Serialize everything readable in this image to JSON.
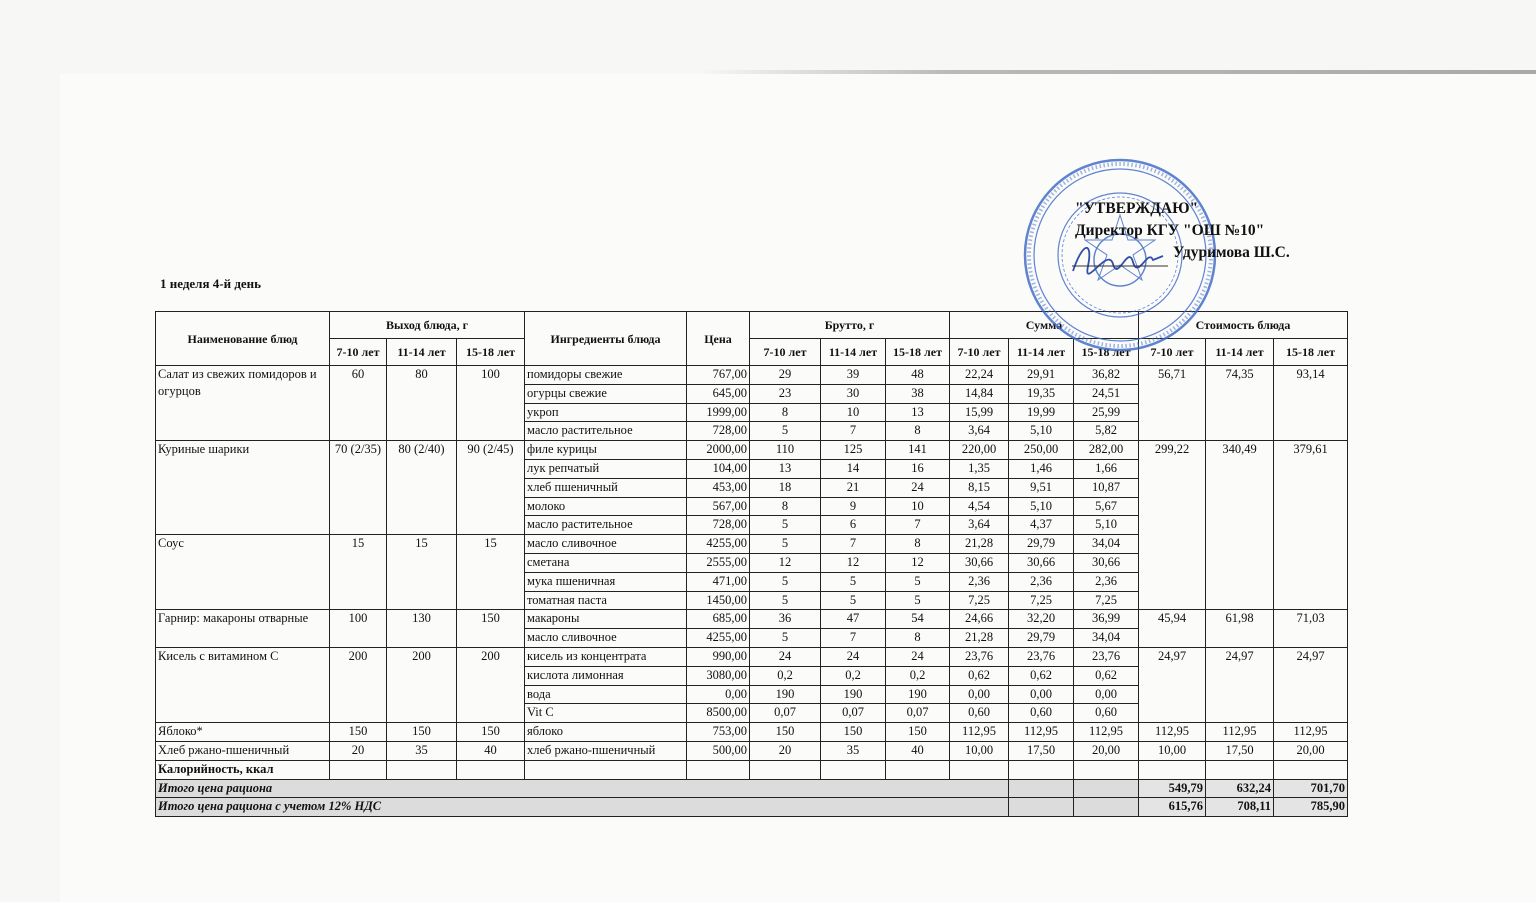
{
  "approval": {
    "line1": "\"УТВЕРЖДАЮ\"",
    "line2": "Директор КГУ \"ОШ №10\"",
    "line3": "Удуримова Ш.С.",
    "stamp_text": "ОШ №10 990440003"
  },
  "day_label": "1 неделя 4-й день",
  "colors": {
    "stamp": "#3a66c4",
    "total_fill": "#dcdcdc"
  },
  "headers": {
    "dish": "Наименование блюд",
    "yield": "Выход блюда, г",
    "ingredients": "Ингредиенты блюда",
    "price": "Цена",
    "brutto": "Брутто, г",
    "sum": "Сумма",
    "cost": "Стоимость блюда",
    "ages": [
      "7-10 лет",
      "11-14 лет",
      "15-18 лет"
    ]
  },
  "dishes": [
    {
      "name": "Салат из свежих помидоров и огурцов",
      "yield": [
        "60",
        "80",
        "100"
      ],
      "cost": [
        "56,71",
        "74,35",
        "93,14"
      ],
      "ingredients": [
        {
          "name": "помидоры свежие",
          "price": "767,00",
          "brutto": [
            "29",
            "39",
            "48"
          ],
          "sum": [
            "22,24",
            "29,91",
            "36,82"
          ]
        },
        {
          "name": "огурцы свежие",
          "price": "645,00",
          "brutto": [
            "23",
            "30",
            "38"
          ],
          "sum": [
            "14,84",
            "19,35",
            "24,51"
          ]
        },
        {
          "name": "укроп",
          "price": "1999,00",
          "brutto": [
            "8",
            "10",
            "13"
          ],
          "sum": [
            "15,99",
            "19,99",
            "25,99"
          ]
        },
        {
          "name": "масло растительное",
          "price": "728,00",
          "brutto": [
            "5",
            "7",
            "8"
          ],
          "sum": [
            "3,64",
            "5,10",
            "5,82"
          ]
        }
      ]
    },
    {
      "name": "Куриные шарики",
      "yield": [
        "70 (2/35)",
        "80 (2/40)",
        "90 (2/45)"
      ],
      "cost": [
        "299,22",
        "340,49",
        "379,61"
      ],
      "ingredients": [
        {
          "name": "филе курицы",
          "price": "2000,00",
          "brutto": [
            "110",
            "125",
            "141"
          ],
          "sum": [
            "220,00",
            "250,00",
            "282,00"
          ]
        },
        {
          "name": "лук репчатый",
          "price": "104,00",
          "brutto": [
            "13",
            "14",
            "16"
          ],
          "sum": [
            "1,35",
            "1,46",
            "1,66"
          ]
        },
        {
          "name": "хлеб пшеничный",
          "price": "453,00",
          "brutto": [
            "18",
            "21",
            "24"
          ],
          "sum": [
            "8,15",
            "9,51",
            "10,87"
          ]
        },
        {
          "name": "молоко",
          "price": "567,00",
          "brutto": [
            "8",
            "9",
            "10"
          ],
          "sum": [
            "4,54",
            "5,10",
            "5,67"
          ]
        },
        {
          "name": "масло растительное",
          "price": "728,00",
          "brutto": [
            "5",
            "6",
            "7"
          ],
          "sum": [
            "3,64",
            "4,37",
            "5,10"
          ]
        }
      ]
    },
    {
      "name": "Соус",
      "yield": [
        "15",
        "15",
        "15"
      ],
      "cost": null,
      "ingredients": [
        {
          "name": "масло сливочное",
          "price": "4255,00",
          "brutto": [
            "5",
            "7",
            "8"
          ],
          "sum": [
            "21,28",
            "29,79",
            "34,04"
          ]
        },
        {
          "name": "сметана",
          "price": "2555,00",
          "brutto": [
            "12",
            "12",
            "12"
          ],
          "sum": [
            "30,66",
            "30,66",
            "30,66"
          ]
        },
        {
          "name": "мука пшеничная",
          "price": "471,00",
          "brutto": [
            "5",
            "5",
            "5"
          ],
          "sum": [
            "2,36",
            "2,36",
            "2,36"
          ]
        },
        {
          "name": "томатная паста",
          "price": "1450,00",
          "brutto": [
            "5",
            "5",
            "5"
          ],
          "sum": [
            "7,25",
            "7,25",
            "7,25"
          ]
        }
      ]
    },
    {
      "name": "Гарнир: макароны отварные",
      "yield": [
        "100",
        "130",
        "150"
      ],
      "cost": [
        "45,94",
        "61,98",
        "71,03"
      ],
      "ingredients": [
        {
          "name": "макароны",
          "price": "685,00",
          "brutto": [
            "36",
            "47",
            "54"
          ],
          "sum": [
            "24,66",
            "32,20",
            "36,99"
          ]
        },
        {
          "name": "масло сливочное",
          "price": "4255,00",
          "brutto": [
            "5",
            "7",
            "8"
          ],
          "sum": [
            "21,28",
            "29,79",
            "34,04"
          ]
        }
      ]
    },
    {
      "name": "Кисель с витамином С",
      "yield": [
        "200",
        "200",
        "200"
      ],
      "cost": [
        "24,97",
        "24,97",
        "24,97"
      ],
      "ingredients": [
        {
          "name": "кисель из концентрата",
          "price": "990,00",
          "brutto": [
            "24",
            "24",
            "24"
          ],
          "sum": [
            "23,76",
            "23,76",
            "23,76"
          ]
        },
        {
          "name": "кислота лимонная",
          "price": "3080,00",
          "brutto": [
            "0,2",
            "0,2",
            "0,2"
          ],
          "sum": [
            "0,62",
            "0,62",
            "0,62"
          ]
        },
        {
          "name": "вода",
          "price": "0,00",
          "brutto": [
            "190",
            "190",
            "190"
          ],
          "sum": [
            "0,00",
            "0,00",
            "0,00"
          ]
        },
        {
          "name": "Vit C",
          "price": "8500,00",
          "brutto": [
            "0,07",
            "0,07",
            "0,07"
          ],
          "sum": [
            "0,60",
            "0,60",
            "0,60"
          ]
        }
      ]
    },
    {
      "name": "Яблоко*",
      "yield": [
        "150",
        "150",
        "150"
      ],
      "cost": [
        "112,95",
        "112,95",
        "112,95"
      ],
      "ingredients": [
        {
          "name": "яблоко",
          "price": "753,00",
          "brutto": [
            "150",
            "150",
            "150"
          ],
          "sum": [
            "112,95",
            "112,95",
            "112,95"
          ]
        }
      ]
    },
    {
      "name": "Хлеб ржано-пшеничный",
      "yield": [
        "20",
        "35",
        "40"
      ],
      "cost": [
        "10,00",
        "17,50",
        "20,00"
      ],
      "ingredients": [
        {
          "name": "хлеб ржано-пшеничный",
          "price": "500,00",
          "brutto": [
            "20",
            "35",
            "40"
          ],
          "sum": [
            "10,00",
            "17,50",
            "20,00"
          ]
        }
      ]
    }
  ],
  "calories_label": "Калорийность, ккал",
  "totals": [
    {
      "label": "Итого цена рациона",
      "values": [
        "549,79",
        "632,24",
        "701,70"
      ]
    },
    {
      "label": "Итого цена рациона с учетом 12% НДС",
      "values": [
        "615,76",
        "708,11",
        "785,90"
      ]
    }
  ]
}
